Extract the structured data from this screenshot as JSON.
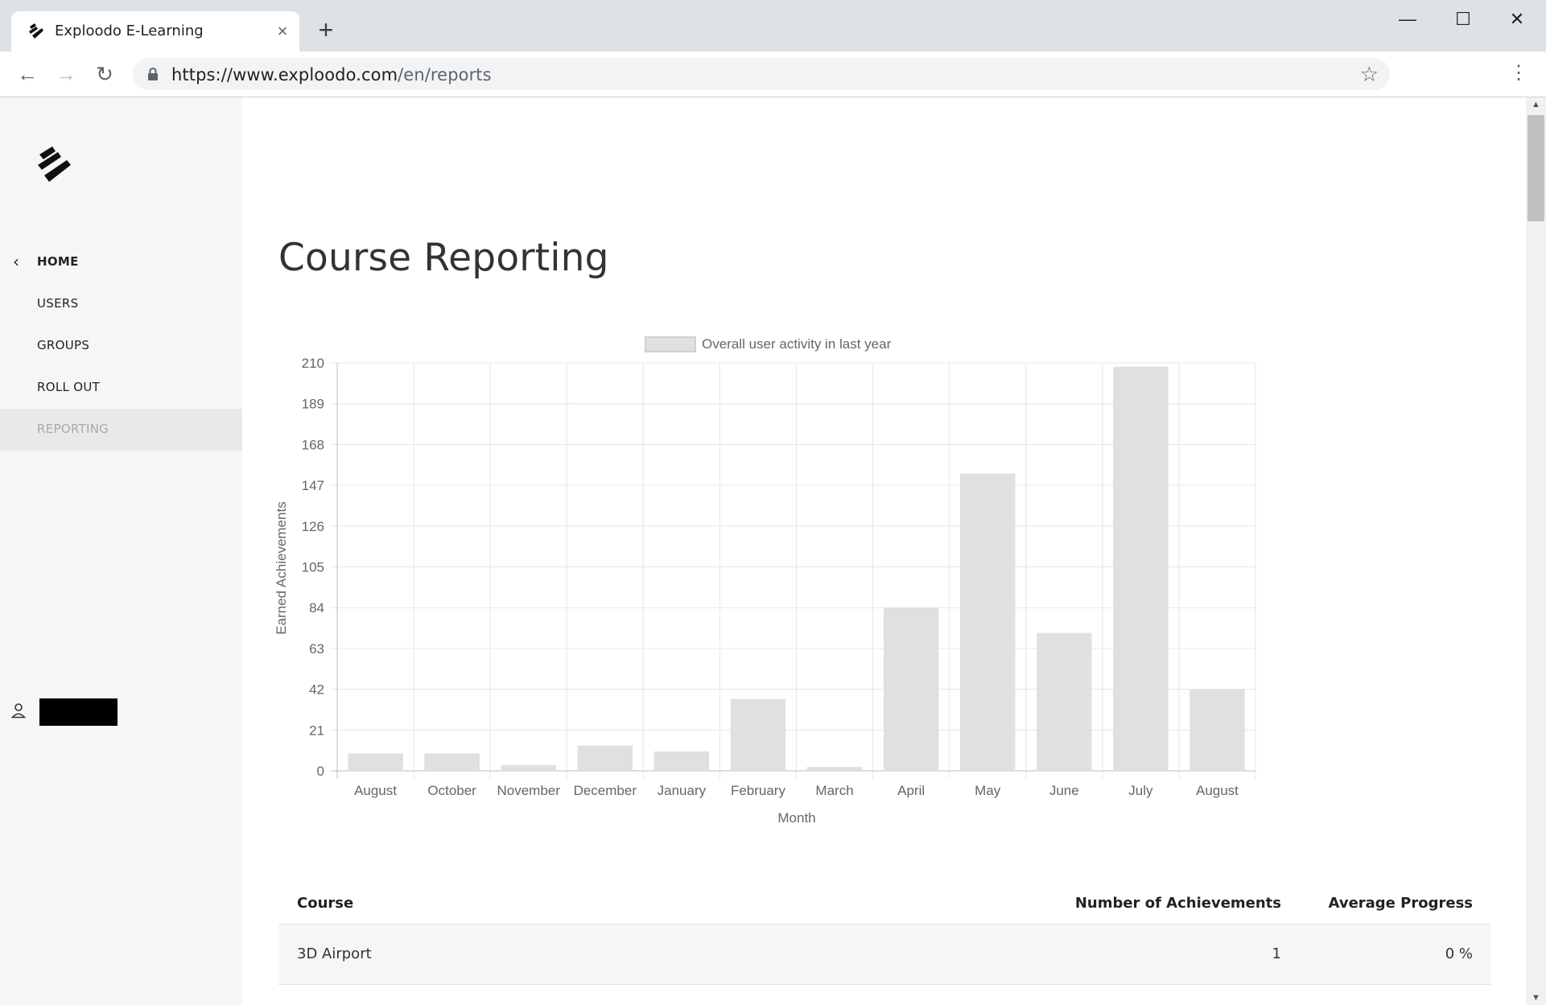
{
  "browser": {
    "tab_title": "Exploodo E-Learning",
    "url_host": "https://www.exploodo.com",
    "url_path": "/en/reports"
  },
  "sidebar": {
    "items": [
      {
        "label": "HOME"
      },
      {
        "label": "USERS"
      },
      {
        "label": "GROUPS"
      },
      {
        "label": "ROLL OUT"
      },
      {
        "label": "REPORTING"
      }
    ]
  },
  "main": {
    "title": "Course Reporting"
  },
  "chart_data": {
    "type": "bar",
    "legend": "Overall user activity in last year",
    "legend_position": "top",
    "xlabel": "Month",
    "ylabel": "Earned Achievements",
    "ylim": [
      0,
      210
    ],
    "yticks": [
      0,
      21,
      42,
      63,
      84,
      105,
      126,
      147,
      168,
      189,
      210
    ],
    "grid": true,
    "categories": [
      "August",
      "October",
      "November",
      "December",
      "January",
      "February",
      "March",
      "April",
      "May",
      "June",
      "July",
      "August"
    ],
    "values": [
      9,
      9,
      3,
      13,
      10,
      37,
      2,
      84,
      153,
      71,
      208,
      42
    ],
    "bar_color": "#e0e0e0"
  },
  "table": {
    "headers": [
      "Course",
      "Number of Achievements",
      "Average Progress"
    ],
    "rows": [
      {
        "course": "3D Airport",
        "achievements": "1",
        "progress": "0 %"
      }
    ]
  }
}
